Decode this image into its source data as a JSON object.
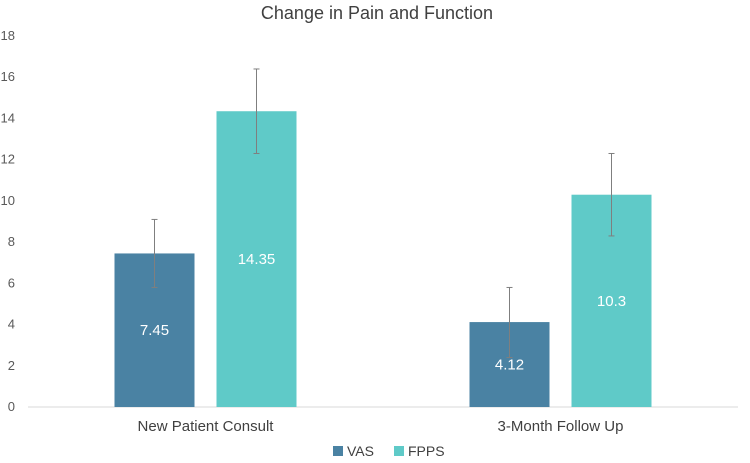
{
  "chart_data": {
    "type": "bar",
    "title": "Change in Pain and Function",
    "categories": [
      "New Patient Consult",
      "3-Month Follow Up"
    ],
    "series": [
      {
        "name": "VAS",
        "color": "#4A82A3",
        "values": [
          7.45,
          4.12
        ],
        "value_labels": [
          "7.45",
          "4.12"
        ],
        "error_low": [
          5.8,
          2.4
        ],
        "error_high": [
          9.1,
          5.8
        ]
      },
      {
        "name": "FPPS",
        "color": "#5FCAC8",
        "values": [
          14.35,
          10.3
        ],
        "value_labels": [
          "14.35",
          "10.3"
        ],
        "error_low": [
          12.3,
          8.3
        ],
        "error_high": [
          16.4,
          12.3
        ]
      }
    ],
    "ylim": [
      0,
      18
    ],
    "yticks": [
      "0",
      "2",
      "4",
      "6",
      "8",
      "10",
      "12",
      "14",
      "16",
      "18"
    ],
    "xlabel": "",
    "ylabel": "",
    "grid": false,
    "legend_position": "bottom"
  }
}
